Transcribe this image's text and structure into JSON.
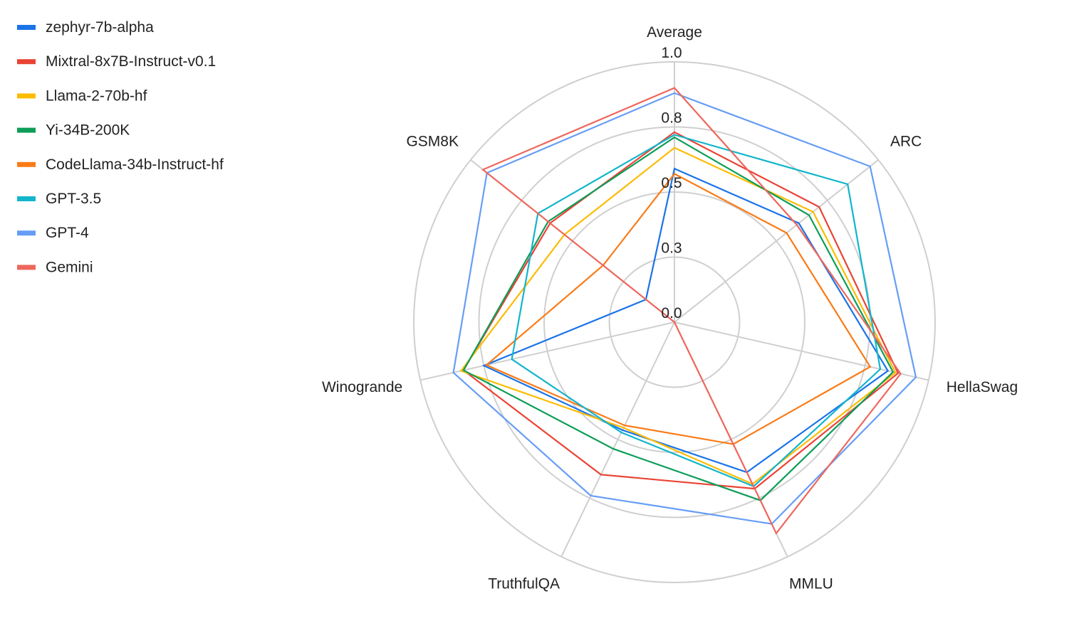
{
  "chart_data": {
    "type": "radar",
    "axes": [
      "Average",
      "ARC",
      "HellaSwag",
      "MMLU",
      "TruthfulQA",
      "Winogrande",
      "GSM8K"
    ],
    "r_range": [
      0.0,
      1.0
    ],
    "ticks": [
      0.0,
      0.25,
      0.5,
      0.75,
      1.0
    ],
    "tick_labels": [
      "0.0",
      "0.3",
      "0.5",
      "0.8",
      "1.0"
    ],
    "grid": true,
    "legend_position": "top-left",
    "series": [
      {
        "name": "zephyr-7b-alpha",
        "color": "#1a73e8",
        "values": [
          0.59,
          0.61,
          0.84,
          0.64,
          0.46,
          0.75,
          0.14
        ]
      },
      {
        "name": "Mixtral-8x7B-Instruct-v0.1",
        "color": "#ea4335",
        "values": [
          0.73,
          0.71,
          0.88,
          0.71,
          0.65,
          0.83,
          0.61
        ]
      },
      {
        "name": "Llama-2-70b-hf",
        "color": "#fbbc04",
        "values": [
          0.67,
          0.68,
          0.87,
          0.69,
          0.45,
          0.84,
          0.54
        ]
      },
      {
        "name": "Yi-34B-200K",
        "color": "#0d9d58",
        "values": [
          0.71,
          0.66,
          0.86,
          0.76,
          0.54,
          0.83,
          0.62
        ]
      },
      {
        "name": "CodeLlama-34b-Instruct-hf",
        "color": "#fa7b17",
        "values": [
          0.57,
          0.55,
          0.77,
          0.52,
          0.44,
          0.74,
          0.35
        ]
      },
      {
        "name": "GPT-3.5",
        "color": "#12b5cb",
        "values": [
          0.72,
          0.85,
          0.81,
          0.7,
          0.47,
          0.64,
          0.67
        ]
      },
      {
        "name": "GPT-4",
        "color": "#669df6",
        "values": [
          0.88,
          0.96,
          0.95,
          0.86,
          0.74,
          0.87,
          0.92
        ]
      },
      {
        "name": "Gemini",
        "color": "#ee675c",
        "values": [
          0.9,
          0.6,
          0.89,
          0.9,
          0.0,
          0.0,
          0.94
        ]
      }
    ]
  }
}
